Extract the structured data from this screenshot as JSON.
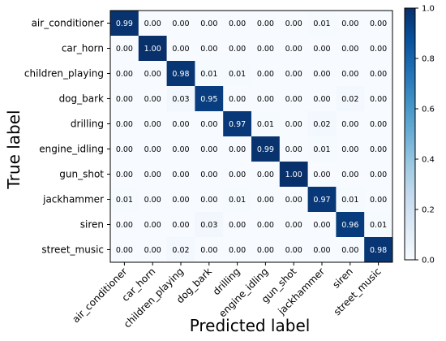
{
  "chart_data": {
    "type": "heatmap",
    "xlabel": "Predicted label",
    "ylabel": "True label",
    "labels": [
      "air_conditioner",
      "car_horn",
      "children_playing",
      "dog_bark",
      "drilling",
      "engine_idling",
      "gun_shot",
      "jackhammer",
      "siren",
      "street_music"
    ],
    "matrix": [
      [
        0.99,
        0.0,
        0.0,
        0.0,
        0.0,
        0.0,
        0.0,
        0.01,
        0.0,
        0.0
      ],
      [
        0.0,
        1.0,
        0.0,
        0.0,
        0.0,
        0.0,
        0.0,
        0.0,
        0.0,
        0.0
      ],
      [
        0.0,
        0.0,
        0.98,
        0.01,
        0.01,
        0.0,
        0.0,
        0.0,
        0.0,
        0.0
      ],
      [
        0.0,
        0.0,
        0.03,
        0.95,
        0.0,
        0.0,
        0.0,
        0.0,
        0.02,
        0.0
      ],
      [
        0.0,
        0.0,
        0.0,
        0.0,
        0.97,
        0.01,
        0.0,
        0.02,
        0.0,
        0.0
      ],
      [
        0.0,
        0.0,
        0.0,
        0.0,
        0.0,
        0.99,
        0.0,
        0.01,
        0.0,
        0.0
      ],
      [
        0.0,
        0.0,
        0.0,
        0.0,
        0.0,
        0.0,
        1.0,
        0.0,
        0.0,
        0.0
      ],
      [
        0.01,
        0.0,
        0.0,
        0.0,
        0.01,
        0.0,
        0.0,
        0.97,
        0.01,
        0.0
      ],
      [
        0.0,
        0.0,
        0.0,
        0.03,
        0.0,
        0.0,
        0.0,
        0.0,
        0.96,
        0.01
      ],
      [
        0.0,
        0.0,
        0.02,
        0.0,
        0.0,
        0.0,
        0.0,
        0.0,
        0.0,
        0.98
      ]
    ],
    "colorbar": {
      "range": [
        0.0,
        1.0
      ],
      "ticks": [
        0.0,
        0.2,
        0.4,
        0.6,
        0.8,
        1.0
      ],
      "colormap": "Blues",
      "low_color": "#f7fbff",
      "high_color": "#08306b"
    },
    "grid": false
  }
}
